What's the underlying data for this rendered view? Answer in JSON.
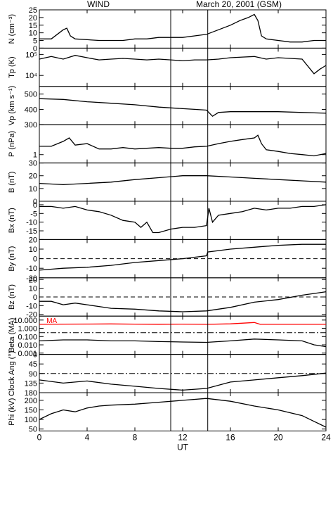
{
  "header": {
    "left": "WIND",
    "right": "March 20, 2001 (GSM)"
  },
  "colors": {
    "trace": "#000000",
    "ma_trace": "#ff0000",
    "frame": "#000000"
  },
  "chart_data": {
    "type": "line",
    "x": {
      "label": "UT",
      "lim": [
        0,
        24
      ],
      "ticks": [
        0,
        4,
        8,
        12,
        16,
        20,
        24
      ],
      "tick_labels": [
        "0",
        "4",
        "8",
        "12",
        "16",
        "20",
        "24"
      ]
    },
    "event_lines_ut": [
      11,
      14.1
    ],
    "panels": [
      {
        "ylabel": "N (cm⁻³)",
        "scale": "linear",
        "ylim": [
          0,
          25
        ],
        "ticks": [
          0,
          5,
          10,
          15,
          20,
          25
        ],
        "tick_labels": [
          "0",
          "5",
          "10",
          "15",
          "20",
          "25"
        ],
        "series": [
          {
            "x": [
              0,
              1,
              1.5,
              2,
              2.3,
              2.6,
              3,
              4,
              5,
              6,
              7,
              8,
              9,
              10,
              11,
              12,
              13,
              14,
              15,
              16,
              16.8,
              17.5,
              18,
              18.3,
              18.6,
              19,
              20,
              21,
              22,
              23,
              24
            ],
            "y": [
              6,
              6,
              9,
              12,
              13,
              8,
              6,
              5.5,
              5,
              5,
              5,
              6,
              6,
              7,
              7,
              7,
              8,
              9,
              12,
              15,
              18,
              20,
              22,
              18,
              8,
              6,
              5,
              4,
              4,
              5,
              5
            ]
          }
        ]
      },
      {
        "ylabel": "Tp (K)",
        "scale": "log",
        "ylim": [
          3000,
          200000
        ],
        "ticks": [
          10000,
          100000
        ],
        "tick_labels": [
          "10⁴",
          "10⁵"
        ],
        "series": [
          {
            "x": [
              0,
              1,
              2,
              3,
              4,
              5,
              6,
              7,
              8,
              9,
              10,
              11,
              12,
              13,
              14,
              15,
              16,
              17,
              18,
              19,
              20,
              21,
              22,
              23,
              23.5,
              24
            ],
            "y": [
              60000,
              80000,
              60000,
              90000,
              70000,
              55000,
              60000,
              65000,
              60000,
              55000,
              60000,
              55000,
              50000,
              55000,
              55000,
              60000,
              70000,
              75000,
              80000,
              60000,
              70000,
              65000,
              60000,
              12000,
              20000,
              30000
            ]
          }
        ]
      },
      {
        "ylabel": "Vp (km s⁻¹)",
        "scale": "linear",
        "ylim": [
          300,
          550
        ],
        "ticks": [
          300,
          400,
          500
        ],
        "tick_labels": [
          "300",
          "400",
          "500"
        ],
        "series": [
          {
            "x": [
              0,
              2,
              4,
              6,
              8,
              10,
              11,
              12,
              13,
              14,
              14.5,
              15,
              16,
              18,
              20,
              22,
              24
            ],
            "y": [
              470,
              465,
              450,
              440,
              430,
              415,
              410,
              405,
              400,
              395,
              355,
              380,
              385,
              385,
              385,
              380,
              375
            ]
          }
        ]
      },
      {
        "ylabel": "P (nPa)",
        "scale": "log",
        "ylim": [
          0.5,
          12
        ],
        "ticks": [
          1
        ],
        "tick_labels": [
          "1"
        ],
        "series": [
          {
            "x": [
              0,
              1,
              2,
              2.5,
              3,
              4,
              5,
              6,
              7,
              8,
              9,
              10,
              11,
              12,
              13,
              14,
              15,
              16,
              17,
              18,
              18.3,
              18.6,
              19,
              20,
              21,
              22,
              23,
              24
            ],
            "y": [
              2,
              2,
              3,
              4,
              2.2,
              2.5,
              1.6,
              1.6,
              1.8,
              1.6,
              1.7,
              1.8,
              1.7,
              1.7,
              1.9,
              2,
              2.5,
              3,
              3.5,
              4,
              5,
              2.5,
              1.5,
              1.3,
              1.1,
              1,
              0.9,
              1.1
            ]
          }
        ]
      },
      {
        "ylabel": "B (nT)",
        "scale": "linear",
        "ylim": [
          0,
          30
        ],
        "ticks": [
          0,
          10,
          20,
          30
        ],
        "tick_labels": [
          "0",
          "10",
          "20",
          "30"
        ],
        "series": [
          {
            "x": [
              0,
              2,
              4,
              6,
              8,
              10,
              12,
              14,
              16,
              18,
              20,
              22,
              24
            ],
            "y": [
              14,
              13,
              14,
              15,
              17,
              18.5,
              20,
              20,
              19,
              18,
              17,
              16,
              15
            ]
          }
        ]
      },
      {
        "ylabel": "Bx (nT)",
        "scale": "linear",
        "ylim": [
          -20,
          2
        ],
        "ticks": [
          -15,
          -10,
          -5,
          0
        ],
        "tick_labels": [
          "-15",
          "-10",
          "-5",
          "0"
        ],
        "series": [
          {
            "x": [
              0,
              1,
              2,
              3,
              4,
              5,
              6,
              7,
              8,
              8.5,
              9,
              9.5,
              10,
              11,
              12,
              13,
              14,
              14.2,
              14.5,
              15,
              16,
              17,
              18,
              19,
              20,
              21,
              22,
              23,
              24
            ],
            "y": [
              -1,
              -1,
              -2,
              -1,
              -3,
              -4,
              -6,
              -9,
              -10,
              -13,
              -10,
              -16,
              -16,
              -14,
              -13,
              -13,
              -12,
              -2,
              -10,
              -6,
              -5,
              -4,
              -2,
              -3,
              -2,
              -2,
              -1,
              -1,
              0
            ]
          }
        ]
      },
      {
        "ylabel": "By (nT)",
        "scale": "linear",
        "ylim": [
          -20,
          20
        ],
        "ticks": [
          -20,
          -10,
          0,
          10,
          20
        ],
        "tick_labels": [
          "-20",
          "-10",
          "0",
          "10",
          "20"
        ],
        "reference_line": {
          "y": 0,
          "style": "dashed"
        },
        "series": [
          {
            "x": [
              0,
              2,
              4,
              6,
              8,
              10,
              12,
              14,
              14.1,
              16,
              18,
              20,
              22,
              24
            ],
            "y": [
              -12,
              -10,
              -9,
              -7,
              -4,
              -2,
              0,
              3,
              7,
              10,
              12,
              14,
              15,
              15
            ]
          }
        ]
      },
      {
        "ylabel": "Bz (nT)",
        "scale": "linear",
        "ylim": [
          -22,
          22
        ],
        "ticks": [
          -20,
          -10,
          0,
          10,
          20
        ],
        "tick_labels": [
          "-20",
          "-10",
          "0",
          "10",
          "20"
        ],
        "reference_line": {
          "y": 0,
          "style": "dashed"
        },
        "series": [
          {
            "x": [
              0,
              1,
              2,
              3,
              4,
              5,
              6,
              8,
              10,
              12,
              14,
              16,
              18,
              20,
              22,
              24
            ],
            "y": [
              -5,
              -5,
              -9,
              -7,
              -9,
              -11,
              -13,
              -14,
              -16,
              -17,
              -16,
              -12,
              -6,
              -3,
              2,
              6
            ]
          }
        ]
      },
      {
        "ylabel": "Beta (MA)",
        "scale": "log",
        "ylim": [
          0.0007,
          30
        ],
        "ticks": [
          0.001,
          0.01,
          0.1,
          1,
          10
        ],
        "tick_labels": [
          "0.001",
          "0.010",
          "0.100",
          "1.000",
          "10.000"
        ],
        "reference_line": {
          "y": 0.3,
          "style": "dashdot"
        },
        "series": [
          {
            "name": "MA",
            "color": "#ff0000",
            "x": [
              0,
              2,
              4,
              6,
              8,
              10,
              12,
              14,
              16,
              18,
              18.5,
              20,
              22,
              24
            ],
            "y": [
              3,
              3.2,
              3.3,
              3.4,
              3.2,
              3.1,
              3.2,
              3,
              3.5,
              5,
              3,
              3,
              3,
              3
            ]
          },
          {
            "x": [
              0,
              2,
              4,
              6,
              8,
              10,
              12,
              14,
              16,
              18,
              20,
              22,
              23,
              24
            ],
            "y": [
              0.03,
              0.04,
              0.04,
              0.03,
              0.03,
              0.025,
              0.022,
              0.02,
              0.03,
              0.05,
              0.04,
              0.03,
              0.01,
              0.006
            ]
          }
        ]
      },
      {
        "ylabel": "Clock Ang (°)",
        "scale": "linear",
        "reversed": true,
        "ylim": [
          0,
          180
        ],
        "ticks": [
          0,
          45,
          90,
          135,
          180
        ],
        "tick_labels": [
          "0",
          "45",
          "90",
          "135",
          "180"
        ],
        "reference_line": {
          "y": 90,
          "style": "dashdot"
        },
        "series": [
          {
            "x": [
              0,
              2,
              4,
              6,
              8,
              10,
              12,
              14,
              16,
              18,
              20,
              22,
              24
            ],
            "y": [
              120,
              135,
              125,
              140,
              150,
              160,
              168,
              160,
              130,
              120,
              110,
              100,
              88
            ]
          }
        ]
      },
      {
        "ylabel": "Phi (kV)",
        "scale": "linear",
        "ylim": [
          40,
          240
        ],
        "ticks": [
          50,
          100,
          150,
          200
        ],
        "tick_labels": [
          "50",
          "100",
          "150",
          "200"
        ],
        "series": [
          {
            "x": [
              0,
              1,
              2,
              3,
              4,
              5,
              6,
              8,
              10,
              12,
              14,
              16,
              18,
              20,
              22,
              23,
              24
            ],
            "y": [
              100,
              130,
              150,
              140,
              160,
              170,
              175,
              180,
              190,
              200,
              210,
              195,
              170,
              150,
              120,
              90,
              60
            ]
          }
        ]
      }
    ]
  }
}
